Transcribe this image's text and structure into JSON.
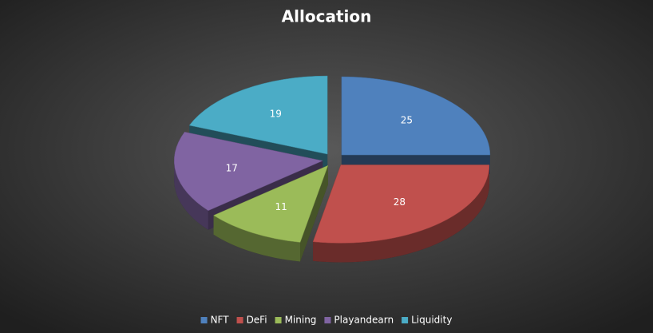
{
  "chart_data": {
    "type": "pie",
    "title": "Allocation",
    "categories": [
      "NFT",
      "DeFi",
      "Mining",
      "Playandearn",
      "Liquidity"
    ],
    "values": [
      25,
      28,
      11,
      17,
      19
    ],
    "colors": [
      "#4f81bd",
      "#c0504d",
      "#9bbb59",
      "#8064a2",
      "#4bacc6"
    ],
    "legend": "bottom"
  }
}
